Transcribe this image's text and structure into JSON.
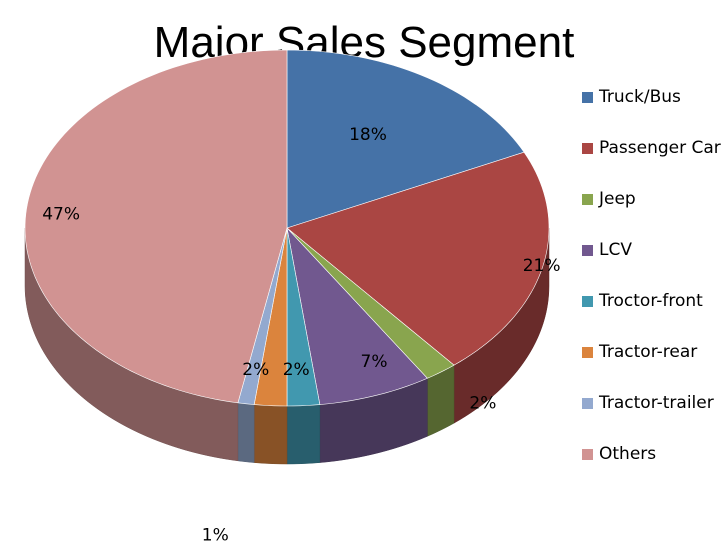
{
  "chart_data": {
    "type": "pie",
    "title": "Major Sales Segment",
    "categories": [
      "Truck/Bus",
      "Passenger Car",
      "Jeep",
      "LCV",
      "Troctor-front",
      "Tractor-rear",
      "Tractor-trailer",
      "Others"
    ],
    "values": [
      18,
      21,
      2,
      7,
      2,
      2,
      1,
      47
    ],
    "data_labels": [
      "18%",
      "21%",
      "2%",
      "7%",
      "2%",
      "2%",
      "1%",
      "47%"
    ],
    "colors": [
      "#4572A7",
      "#AA4643",
      "#89A54E",
      "#71588F",
      "#4198AF",
      "#DB843D",
      "#93A9CF",
      "#D19392"
    ],
    "style": "3d",
    "legend_position": "right"
  }
}
